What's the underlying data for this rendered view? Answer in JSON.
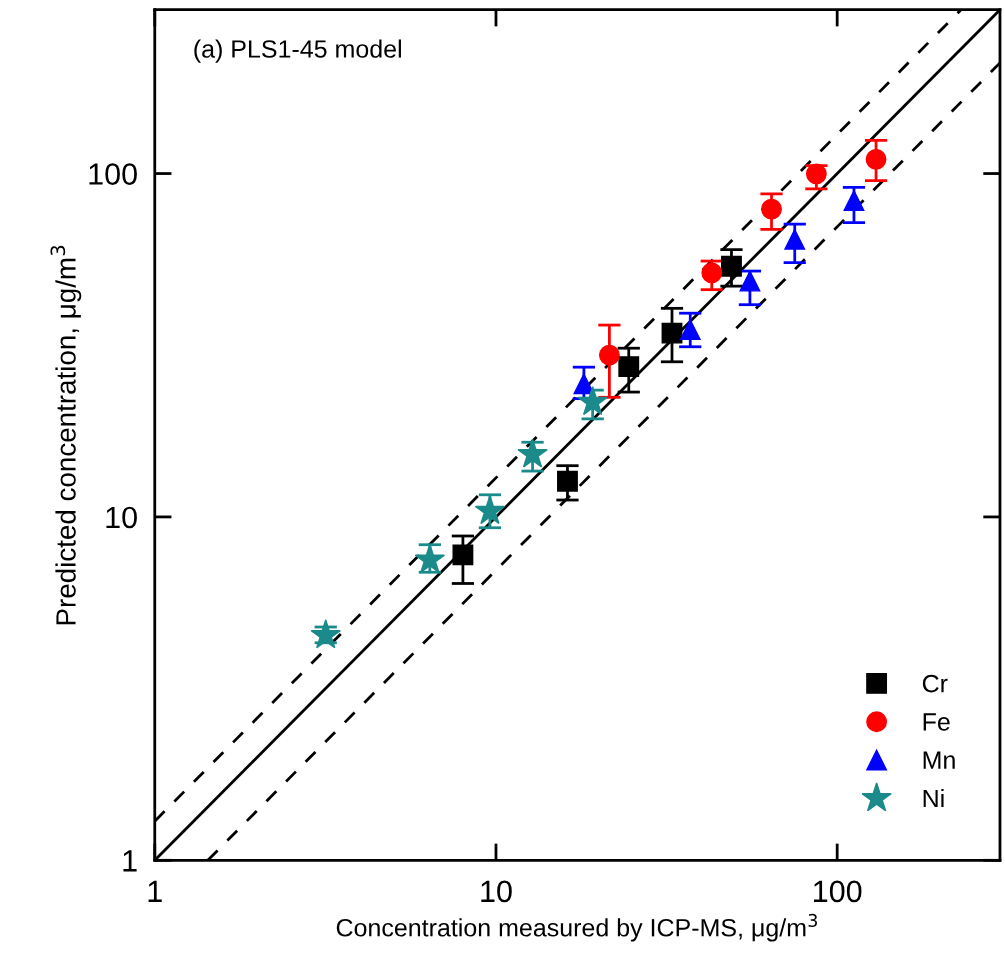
{
  "chart_data": {
    "type": "scatter",
    "title": "(a) PLS1-45 model",
    "xlabel": "Concentration measured by ICP-MS, μg/m$^{3}$",
    "ylabel": "Predicted concentration, μg/m$^{3}$",
    "log": "xy",
    "xlim": [
      1,
      300
    ],
    "ylim": [
      1,
      300
    ],
    "xticks": [
      1,
      10,
      100
    ],
    "yticks": [
      1,
      10,
      100
    ],
    "grid": false,
    "legend": "bottom right",
    "series": [
      {
        "type": "line",
        "color": "#000000",
        "line_style": "solid",
        "marker": "none",
        "x": [
          1,
          300
        ],
        "values": [
          1,
          300
        ]
      },
      {
        "type": "line",
        "color": "#000000",
        "line_style": "dashed",
        "marker": "none",
        "x": [
          1,
          230
        ],
        "values": [
          1.3,
          299
        ]
      },
      {
        "type": "line",
        "color": "#000000",
        "line_style": "dashed",
        "marker": "none",
        "x": [
          1.43,
          300
        ],
        "values": [
          1.0,
          210
        ]
      },
      {
        "name": "Cr",
        "color": "#000000",
        "marker": "square",
        "x": [
          8.0,
          16.2,
          24.5,
          32.8,
          49
        ],
        "values": [
          7.75,
          12.7,
          27.4,
          34.3,
          53.7
        ],
        "errors": [
          [
            6.4,
            8.8
          ],
          [
            11.2,
            14.1
          ],
          [
            23.1,
            31
          ],
          [
            28.3,
            40.5
          ],
          [
            47,
            60
          ]
        ]
      },
      {
        "name": "Fe",
        "color": "#ff0000",
        "marker": "circle",
        "x": [
          21.5,
          42.9,
          64.2,
          86.9,
          130
        ],
        "values": [
          29.6,
          51.4,
          78.8,
          99.8,
          110
        ],
        "errors": [
          [
            22.3,
            36.2
          ],
          [
            45.9,
            55.6
          ],
          [
            68.8,
            87.2
          ],
          [
            90.2,
            105.5
          ],
          [
            95.3,
            125
          ]
        ]
      },
      {
        "name": "Mn",
        "color": "#0000ff",
        "marker": "triangle",
        "x": [
          18.1,
          37.1,
          55.5,
          75.1,
          112
        ],
        "values": [
          24.4,
          35.1,
          48.6,
          64.3,
          83.4
        ],
        "errors": [
          [
            22.1,
            27.3
          ],
          [
            31.3,
            39.2
          ],
          [
            41.5,
            52
          ],
          [
            55,
            71.2
          ],
          [
            72,
            91.2
          ]
        ]
      },
      {
        "name": "Ni",
        "color": "#1a8a8a",
        "marker": "star",
        "x": [
          3.17,
          6.4,
          9.6,
          12.8,
          19.2
        ],
        "values": [
          4.52,
          7.5,
          10.4,
          15.2,
          21.6
        ],
        "errors": [
          [
            4.3,
            4.78
          ],
          [
            6.9,
            8.3
          ],
          [
            9.3,
            11.6
          ],
          [
            13.6,
            16.5
          ],
          [
            19.3,
            23.4
          ]
        ]
      }
    ]
  }
}
